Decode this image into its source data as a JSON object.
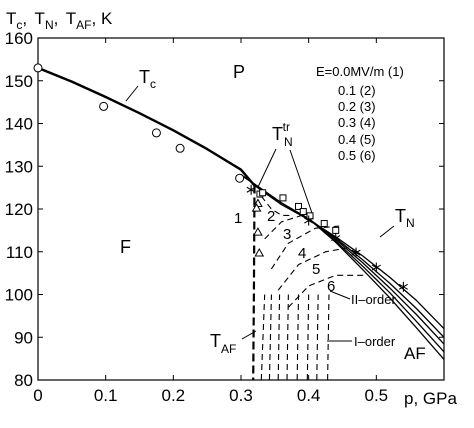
{
  "chart_data": {
    "type": "line",
    "title": "",
    "ylabel_parts": {
      "tc_main": "T",
      "tc_sub": "c",
      "sep1": ",",
      "tn_main": "T",
      "tn_sub": "N",
      "sep2": ",",
      "taf_main": "T",
      "taf_sub": "AF",
      "unit": ", K"
    },
    "xlabel": "p, GPa",
    "xlim": [
      0,
      0.6
    ],
    "ylim": [
      80,
      160
    ],
    "xticks": [
      0,
      0.1,
      0.2,
      0.3,
      0.4,
      0.5
    ],
    "xtick_labels": [
      "0",
      "0.1",
      "0.2",
      "0.3",
      "0.4",
      "0.5"
    ],
    "yticks": [
      80,
      90,
      100,
      110,
      120,
      130,
      140,
      150,
      160
    ],
    "ytick_labels": [
      "80",
      "90",
      "100",
      "110",
      "120",
      "130",
      "140",
      "150",
      "160"
    ],
    "grid": false,
    "legend": {
      "title": "E=0.0MV/m (1)",
      "entries": [
        "0.1 (2)",
        "0.2 (3)",
        "0.3 (4)",
        "0.4 (5)",
        "0.5 (6)"
      ]
    },
    "phase_labels": {
      "paramagnetic": "P",
      "ferro": "F",
      "antiferro": "AF"
    },
    "curve_labels": {
      "tc": {
        "main": "T",
        "sub": "c"
      },
      "tn": {
        "main": "T",
        "sub": "N"
      },
      "tn_tr": {
        "main": "T",
        "sub": "N",
        "sup": "tr"
      },
      "taf": {
        "main": "T",
        "sub": "AF"
      }
    },
    "order_labels": {
      "second": "II–order",
      "first": "I–order"
    },
    "number_labels": [
      "1",
      "2",
      "3",
      "4",
      "5",
      "6"
    ],
    "series": [
      {
        "name": "Tc",
        "style": "thick-solid",
        "points": [
          [
            0,
            153
          ],
          [
            0.05,
            149.8
          ],
          [
            0.1,
            146.2
          ],
          [
            0.15,
            142.4
          ],
          [
            0.2,
            138.4
          ],
          [
            0.25,
            134
          ],
          [
            0.3,
            129.2
          ],
          [
            0.32,
            125.5
          ]
        ]
      },
      {
        "name": "T_AF (1)",
        "style": "dashed-thick",
        "points": [
          [
            0.32,
            125.5
          ],
          [
            0.319,
            100
          ],
          [
            0.318,
            80
          ]
        ]
      },
      {
        "name": "T_N (1)",
        "style": "solid",
        "points": [
          [
            0.32,
            125.5
          ],
          [
            0.36,
            121
          ],
          [
            0.4,
            117.5
          ],
          [
            0.44,
            113.5
          ],
          [
            0.48,
            109
          ],
          [
            0.52,
            104
          ],
          [
            0.56,
            98.5
          ],
          [
            0.6,
            92
          ]
        ]
      },
      {
        "name": "T_N (2)",
        "style": "solid",
        "points": [
          [
            0.3,
            128
          ],
          [
            0.36,
            121.4
          ],
          [
            0.4,
            117.7
          ],
          [
            0.44,
            113.2
          ],
          [
            0.48,
            108.1
          ],
          [
            0.52,
            102.6
          ],
          [
            0.56,
            96.6
          ],
          [
            0.6,
            90
          ]
        ]
      },
      {
        "name": "T_N (3)",
        "style": "solid",
        "points": [
          [
            0.3,
            128
          ],
          [
            0.36,
            121.4
          ],
          [
            0.4,
            117.7
          ],
          [
            0.44,
            112.9
          ],
          [
            0.48,
            107.4
          ],
          [
            0.52,
            101.5
          ],
          [
            0.56,
            95.2
          ],
          [
            0.6,
            88.4
          ]
        ]
      },
      {
        "name": "T_N (4)",
        "style": "solid",
        "points": [
          [
            0.3,
            128
          ],
          [
            0.36,
            121.4
          ],
          [
            0.4,
            117.7
          ],
          [
            0.44,
            112.5
          ],
          [
            0.48,
            106.6
          ],
          [
            0.52,
            100.4
          ],
          [
            0.56,
            93.6
          ],
          [
            0.6,
            86.6
          ]
        ]
      },
      {
        "name": "T_N (5)",
        "style": "solid",
        "points": [
          [
            0.3,
            128
          ],
          [
            0.36,
            121.4
          ],
          [
            0.4,
            117.7
          ],
          [
            0.44,
            112.2
          ],
          [
            0.48,
            105.8
          ],
          [
            0.52,
            99.2
          ],
          [
            0.56,
            92.1
          ],
          [
            0.6,
            84.8
          ]
        ]
      },
      {
        "name": "T_N^tr (2)",
        "style": "dashed",
        "points": [
          [
            0.33,
            123
          ],
          [
            0.345,
            120
          ],
          [
            0.36,
            118.5
          ],
          [
            0.375,
            118.5
          ]
        ]
      },
      {
        "name": "T_N^tr (3)",
        "style": "dashed",
        "points": [
          [
            0.335,
            113
          ],
          [
            0.36,
            117
          ],
          [
            0.39,
            118.5
          ],
          [
            0.41,
            118.5
          ]
        ]
      },
      {
        "name": "T_N^tr (4)",
        "style": "dashed",
        "points": [
          [
            0.345,
            106
          ],
          [
            0.37,
            112
          ],
          [
            0.41,
            115.5
          ],
          [
            0.445,
            116
          ]
        ]
      },
      {
        "name": "T_N^tr (5)",
        "style": "dashed",
        "points": [
          [
            0.355,
            101
          ],
          [
            0.385,
            107
          ],
          [
            0.425,
            110
          ],
          [
            0.46,
            111
          ]
        ]
      },
      {
        "name": "T_N^tr (6)",
        "style": "dashed",
        "points": [
          [
            0.37,
            97
          ],
          [
            0.4,
            102
          ],
          [
            0.44,
            104.5
          ],
          [
            0.485,
            104.5
          ]
        ]
      },
      {
        "name": "I-order boundaries",
        "style": "dashed",
        "lines": [
          [
            0.33,
            80,
            0.335,
            100
          ],
          [
            0.342,
            80,
            0.345,
            100
          ],
          [
            0.355,
            80,
            0.357,
            100
          ],
          [
            0.368,
            80,
            0.37,
            100
          ],
          [
            0.383,
            80,
            0.385,
            100
          ],
          [
            0.398,
            80,
            0.4,
            100
          ],
          [
            0.412,
            80,
            0.414,
            100
          ],
          [
            0.428,
            80,
            0.43,
            100
          ]
        ]
      }
    ],
    "markers": {
      "circles": [
        [
          0,
          153
        ],
        [
          0.097,
          144
        ],
        [
          0.175,
          137.8
        ],
        [
          0.21,
          134.2
        ],
        [
          0.298,
          127.2
        ]
      ],
      "squares": [
        [
          0.328,
          123.5
        ],
        [
          0.332,
          123.8
        ],
        [
          0.362,
          122.6
        ],
        [
          0.385,
          120.6
        ],
        [
          0.392,
          119.4
        ],
        [
          0.402,
          118.4
        ],
        [
          0.423,
          116.6
        ],
        [
          0.44,
          115
        ]
      ],
      "triangles": [
        [
          0.325,
          121.3
        ],
        [
          0.323,
          120.2
        ],
        [
          0.325,
          114.6
        ],
        [
          0.327,
          109.7
        ]
      ],
      "stars": [
        [
          0.315,
          124.5
        ],
        [
          0.4,
          117.3
        ],
        [
          0.44,
          113.2
        ],
        [
          0.47,
          109.8
        ],
        [
          0.5,
          106.3
        ],
        [
          0.54,
          101.8
        ]
      ]
    }
  }
}
